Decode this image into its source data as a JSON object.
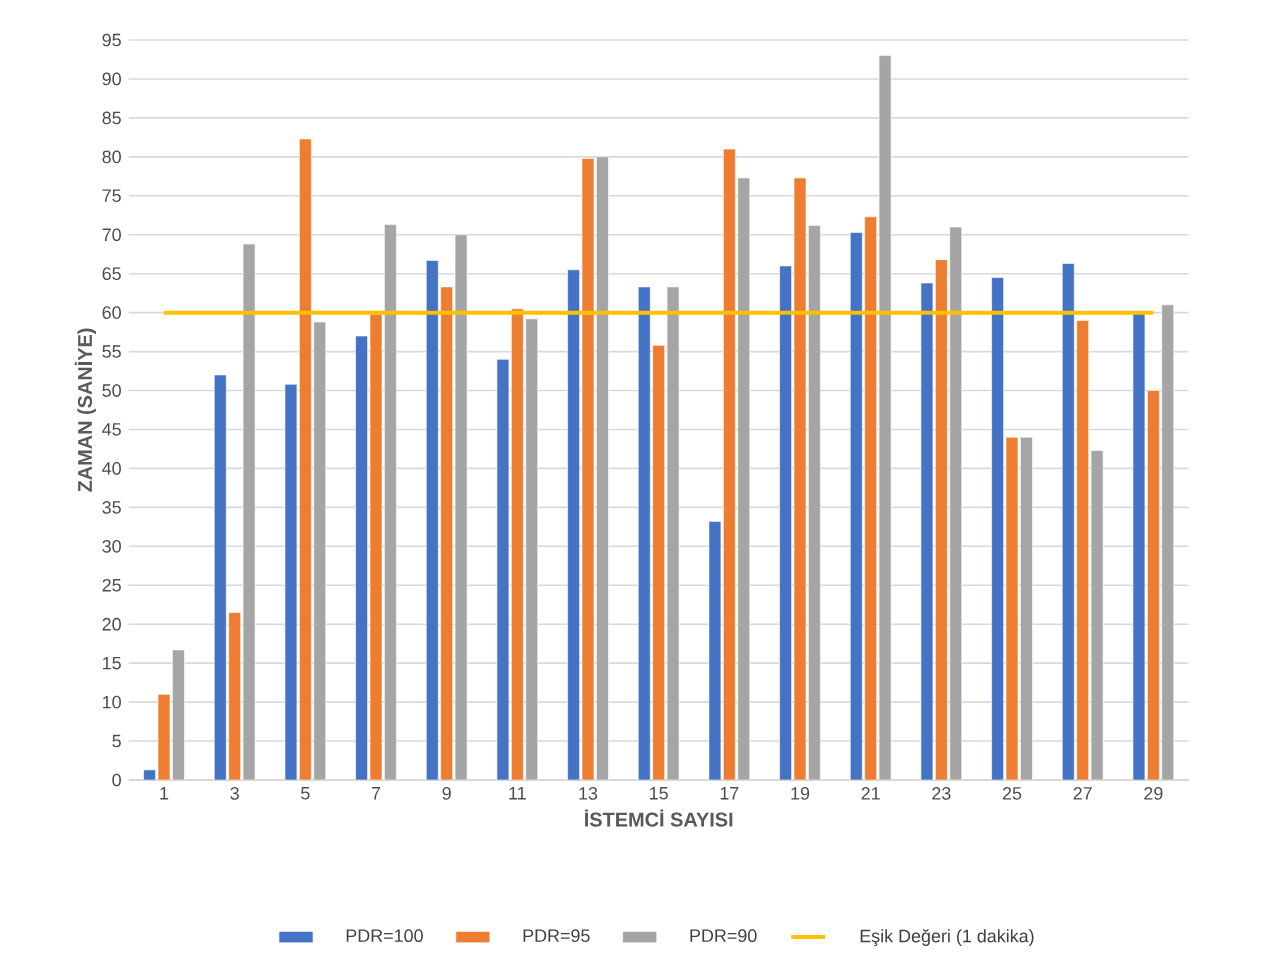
{
  "chart_data": {
    "type": "bar",
    "xlabel": "İSTEMCİ SAYISI",
    "ylabel": "ZAMAN (SANİYE)",
    "categories": [
      "1",
      "3",
      "5",
      "7",
      "9",
      "11",
      "13",
      "15",
      "17",
      "19",
      "21",
      "23",
      "25",
      "27",
      "29"
    ],
    "series": [
      {
        "name": "PDR=100",
        "color": "#4472c4",
        "values": [
          1.3,
          52,
          50.8,
          57,
          66.7,
          54,
          65.5,
          63.3,
          33.2,
          66,
          70.3,
          63.8,
          64.5,
          66.3,
          60
        ]
      },
      {
        "name": "PDR=95",
        "color": "#ed7d31",
        "values": [
          11,
          21.5,
          82.3,
          59.8,
          63.3,
          60.5,
          79.8,
          55.8,
          81,
          77.3,
          72.3,
          66.8,
          44,
          59,
          50
        ]
      },
      {
        "name": "PDR=90",
        "color": "#a5a5a5",
        "values": [
          16.7,
          68.8,
          58.8,
          71.3,
          70,
          59.2,
          80,
          63.3,
          77.3,
          71.2,
          93,
          71,
          44,
          42.3,
          61
        ]
      },
      {
        "name": "Eşik Değeri (1 dakika)",
        "color": "#ffc000",
        "type": "line",
        "values": [
          60,
          60,
          60,
          60,
          60,
          60,
          60,
          60,
          60,
          60,
          60,
          60,
          60,
          60,
          60
        ]
      }
    ],
    "ylim": [
      0,
      95
    ],
    "yticks": [
      0,
      5,
      10,
      15,
      20,
      25,
      30,
      35,
      40,
      45,
      50,
      55,
      60,
      65,
      70,
      75,
      80,
      85,
      90,
      95
    ],
    "grid": "y",
    "legend": "bottom"
  }
}
